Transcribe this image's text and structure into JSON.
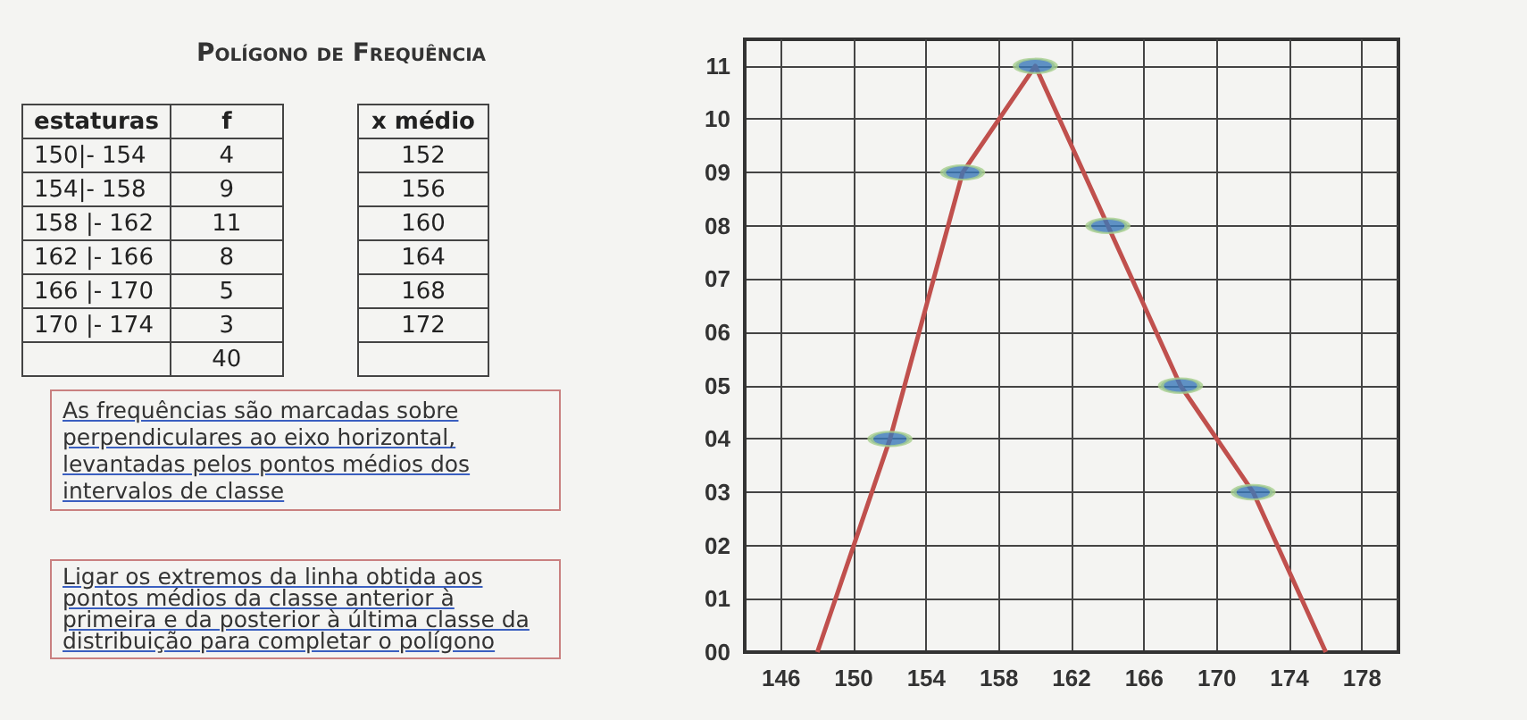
{
  "chart_data": {
    "type": "line",
    "title": "Polígono de Frequência",
    "annotations": [
      "estaturas\tf",
      "150|- 154\t4",
      "154|- 158\t9",
      "158 |- 162\t11",
      "162 |- 166\t8",
      "166 |- 170\t5",
      "170 |- 174\t3",
      "\t40",
      "x médio",
      "152",
      "156",
      "160",
      "164",
      "168",
      "172",
      "As frequências são marcadas sobre perpendiculares ao eixo horizontal, levantadas pelos pontos médios dos intervalos de classe",
      "Ligar os extremos da linha obtida aos pontos médios da classe anterior à primeira e da posterior à última classe da distribuição para completar o polígono"
    ],
    "series": [
      {
        "color": "#c0504d",
        "marker": "none",
        "x": [
          148,
          152,
          156,
          160,
          164,
          168,
          172,
          176
        ],
        "values": [
          0,
          4,
          9,
          11,
          8,
          5,
          3,
          0
        ]
      },
      {
        "type": "scatter",
        "color": "#3a78b8",
        "marker": "circle",
        "x": [
          152,
          156,
          160,
          164,
          168,
          172
        ],
        "values": [
          4,
          9,
          11,
          8,
          5,
          3
        ]
      }
    ],
    "xlim": [
      144,
      180
    ],
    "xticks": [
      146,
      150,
      154,
      158,
      162,
      166,
      170,
      174,
      178
    ],
    "ylim": [
      0,
      11.5
    ],
    "yticks": [
      {
        "value": 0,
        "label": "00"
      },
      {
        "value": 1,
        "label": "01"
      },
      {
        "value": 2,
        "label": "02"
      },
      {
        "value": 3,
        "label": "03"
      },
      {
        "value": 4,
        "label": "04"
      },
      {
        "value": 5,
        "label": "05"
      },
      {
        "value": 6,
        "label": "06"
      },
      {
        "value": 7,
        "label": "07"
      },
      {
        "value": 8,
        "label": "08"
      },
      {
        "value": 9,
        "label": "09"
      },
      {
        "value": 10,
        "label": "10"
      },
      {
        "value": 11,
        "label": "11"
      }
    ],
    "grid": true
  }
}
